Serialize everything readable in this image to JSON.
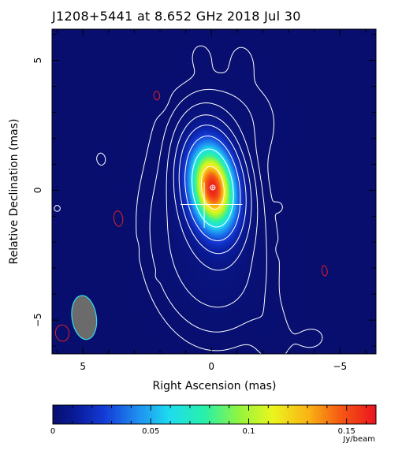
{
  "chart_data": {
    "type": "heatmap",
    "title": "J1208+5441 at 8.652 GHz 2018 Jul 30",
    "xlabel": "Right Ascension  (mas)",
    "ylabel": "Relative Declination  (mas)",
    "xlim": [
      6.2,
      -6.4
    ],
    "ylim": [
      -6.3,
      6.2
    ],
    "xticks": [
      {
        "value": 5,
        "label": "5"
      },
      {
        "value": 0,
        "label": "0"
      },
      {
        "value": -5,
        "label": "−5"
      }
    ],
    "yticks": [
      {
        "value": 5,
        "label": "5"
      },
      {
        "value": 0,
        "label": "0"
      },
      {
        "value": -5,
        "label": "−5"
      }
    ],
    "source": {
      "ra": -0.05,
      "dec": 0.1,
      "peak": 0.16,
      "sigma_major": 1.05,
      "sigma_minor": 0.55,
      "pa_deg": 8
    },
    "beam": {
      "ra": 4.95,
      "dec": -4.9,
      "major": 1.7,
      "minor": 0.95,
      "pa_deg": 8
    },
    "contours": {
      "positive_levels": [
        0.0005,
        0.0011,
        0.0025,
        0.006,
        0.013,
        0.028,
        0.06,
        0.12
      ],
      "negative_level": -0.0004
    },
    "colorbar": {
      "min": 0,
      "max": 0.165,
      "ticks": [
        {
          "value": 0,
          "label": "0"
        },
        {
          "value": 0.05,
          "label": "0.05"
        },
        {
          "value": 0.1,
          "label": "0.1"
        },
        {
          "value": 0.15,
          "label": "0.15"
        }
      ],
      "unit": "Jy/beam"
    },
    "colors": {
      "background": "#0c1a80",
      "positive_contour": "#ffffff",
      "negative_contour": "#e02020",
      "beam_fill": "#6b6b6b",
      "beam_edge": "#30e0e8",
      "frame": "#000000"
    }
  }
}
